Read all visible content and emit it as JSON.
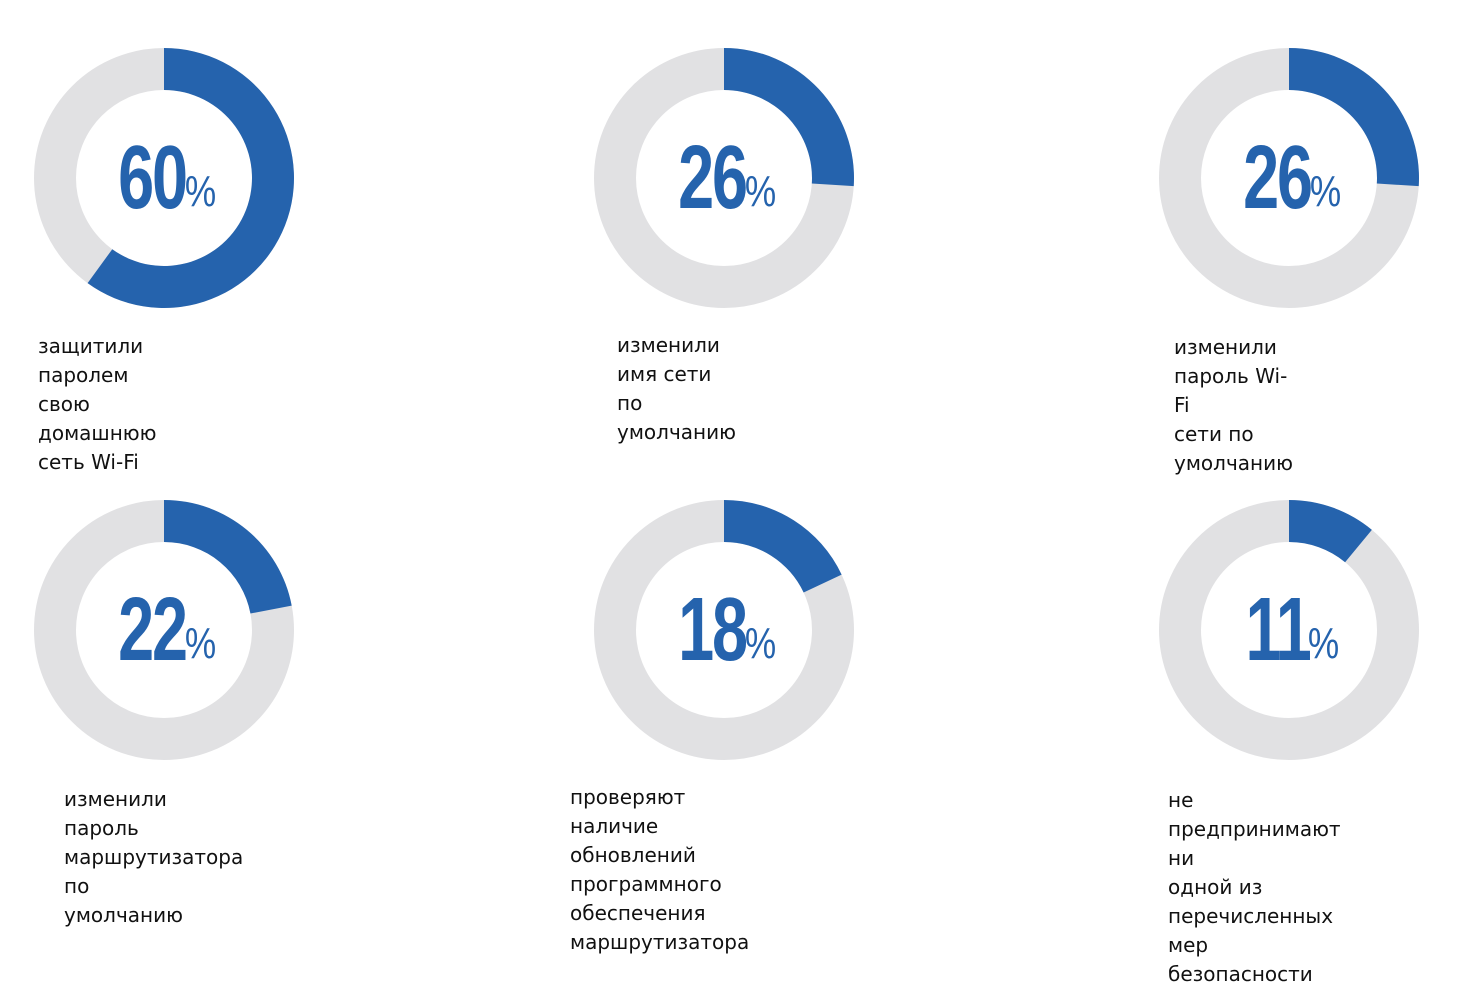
{
  "colors": {
    "accent": "#2563ad",
    "track": "#e1e1e3"
  },
  "chart_data": [
    {
      "type": "pie",
      "variant": "donut",
      "value": 60,
      "label": "60",
      "unit": "%",
      "caption": "защитили паролем свою\nдомашнюю сеть Wi-Fi"
    },
    {
      "type": "pie",
      "variant": "donut",
      "value": 26,
      "label": "26",
      "unit": "%",
      "caption": "изменили имя сети\nпо умолчанию"
    },
    {
      "type": "pie",
      "variant": "donut",
      "value": 26,
      "label": "26",
      "unit": "%",
      "caption": "изменили пароль Wi-Fi\nсети по умолчанию"
    },
    {
      "type": "pie",
      "variant": "donut",
      "value": 22,
      "label": "22",
      "unit": "%",
      "caption": "изменили пароль\nмаршрутизатора по\nумолчанию"
    },
    {
      "type": "pie",
      "variant": "donut",
      "value": 18,
      "label": "18",
      "unit": "%",
      "caption": "проверяют наличие\nобновлений программного\nобеспечения маршрутизатора"
    },
    {
      "type": "pie",
      "variant": "donut",
      "value": 11,
      "label": "11",
      "unit": "%",
      "caption": "не предпринимают ни\nодной из перечисленных\nмер безопасности"
    }
  ]
}
